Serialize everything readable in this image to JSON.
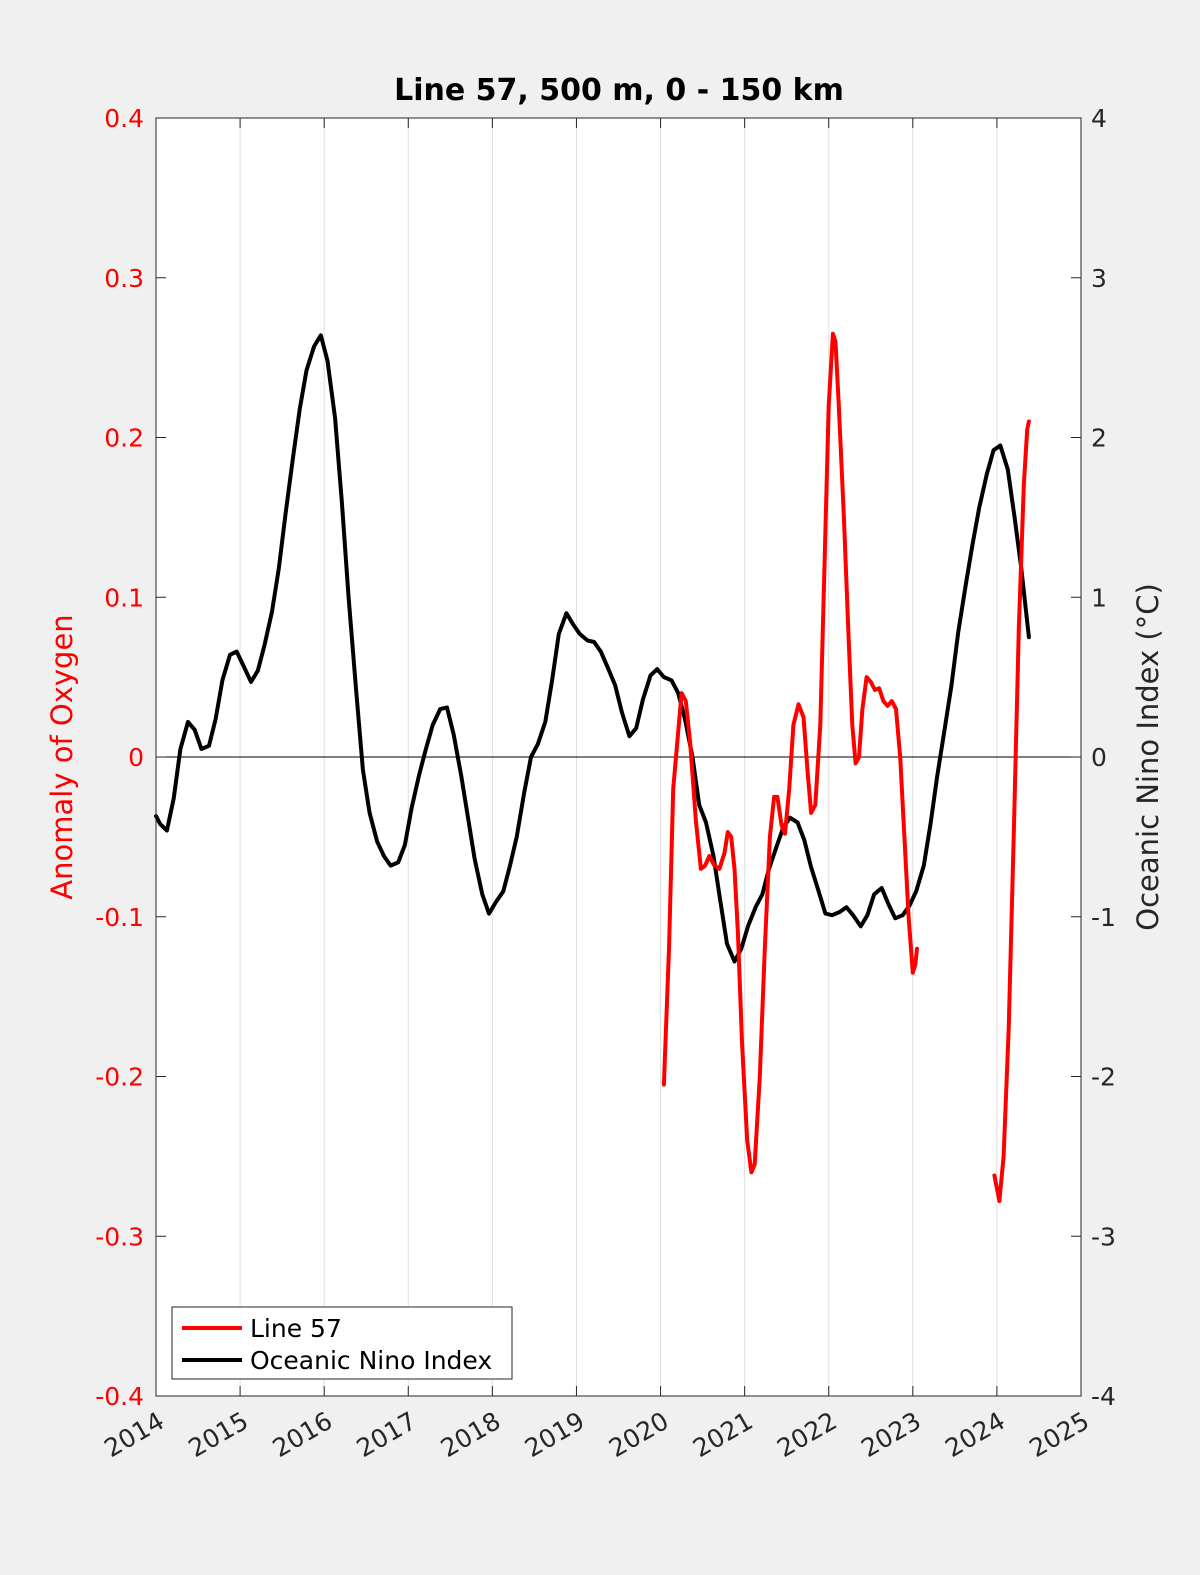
{
  "chart_data": {
    "type": "line",
    "title": "Line 57, 500 m, 0 - 150 km",
    "xlabel": "",
    "ylabel_left": "Anomaly of Oxygen",
    "ylabel_right": "Oceanic Nino Index (°C)",
    "xlim": [
      2014,
      2025
    ],
    "ylim_left": [
      -0.4,
      0.4
    ],
    "ylim_right": [
      -4,
      4
    ],
    "x_ticks": [
      "2014",
      "2015",
      "2016",
      "2017",
      "2018",
      "2019",
      "2020",
      "2021",
      "2022",
      "2023",
      "2024",
      "2025"
    ],
    "y_ticks_left": [
      "0.4",
      "0.3",
      "0.2",
      "0.1",
      "0",
      "-0.1",
      "-0.2",
      "-0.3",
      "-0.4"
    ],
    "y_ticks_right": [
      "4",
      "3",
      "2",
      "1",
      "0",
      "-1",
      "-2",
      "-3",
      "-4"
    ],
    "grid": "vertical",
    "zero_line": true,
    "legend_position": "bottom-left",
    "series": [
      {
        "name": "Line 57",
        "axis": "left",
        "color": "#ff0000",
        "segments": [
          [
            [
              2020.04,
              -0.205
            ],
            [
              2020.1,
              -0.12
            ],
            [
              2020.15,
              -0.02
            ],
            [
              2020.2,
              0.01
            ],
            [
              2020.25,
              0.04
            ],
            [
              2020.3,
              0.035
            ],
            [
              2020.35,
              0.01
            ],
            [
              2020.42,
              -0.04
            ],
            [
              2020.48,
              -0.07
            ],
            [
              2020.53,
              -0.068
            ],
            [
              2020.58,
              -0.062
            ],
            [
              2020.64,
              -0.068
            ],
            [
              2020.7,
              -0.07
            ],
            [
              2020.76,
              -0.06
            ],
            [
              2020.8,
              -0.047
            ],
            [
              2020.84,
              -0.05
            ],
            [
              2020.88,
              -0.07
            ],
            [
              2020.92,
              -0.11
            ],
            [
              2020.97,
              -0.18
            ],
            [
              2021.03,
              -0.24
            ],
            [
              2021.08,
              -0.26
            ],
            [
              2021.12,
              -0.255
            ],
            [
              2021.18,
              -0.2
            ],
            [
              2021.24,
              -0.12
            ],
            [
              2021.3,
              -0.05
            ],
            [
              2021.35,
              -0.025
            ],
            [
              2021.39,
              -0.025
            ],
            [
              2021.44,
              -0.043
            ],
            [
              2021.48,
              -0.048
            ],
            [
              2021.53,
              -0.02
            ],
            [
              2021.58,
              0.02
            ],
            [
              2021.64,
              0.033
            ],
            [
              2021.7,
              0.025
            ],
            [
              2021.75,
              -0.01
            ],
            [
              2021.79,
              -0.035
            ],
            [
              2021.84,
              -0.03
            ],
            [
              2021.9,
              0.02
            ],
            [
              2021.95,
              0.12
            ],
            [
              2022.0,
              0.22
            ],
            [
              2022.05,
              0.265
            ],
            [
              2022.08,
              0.26
            ],
            [
              2022.12,
              0.22
            ],
            [
              2022.18,
              0.15
            ],
            [
              2022.24,
              0.07
            ],
            [
              2022.28,
              0.02
            ],
            [
              2022.32,
              -0.004
            ],
            [
              2022.36,
              0.0
            ],
            [
              2022.4,
              0.03
            ],
            [
              2022.45,
              0.05
            ],
            [
              2022.5,
              0.047
            ],
            [
              2022.55,
              0.042
            ],
            [
              2022.6,
              0.043
            ],
            [
              2022.65,
              0.035
            ],
            [
              2022.7,
              0.032
            ],
            [
              2022.75,
              0.035
            ],
            [
              2022.8,
              0.03
            ],
            [
              2022.85,
              0.0
            ],
            [
              2022.9,
              -0.05
            ],
            [
              2022.95,
              -0.1
            ],
            [
              2023.0,
              -0.135
            ],
            [
              2023.03,
              -0.13
            ],
            [
              2023.05,
              -0.12
            ]
          ],
          [
            [
              2023.97,
              -0.262
            ],
            [
              2024.0,
              -0.27
            ],
            [
              2024.03,
              -0.278
            ],
            [
              2024.08,
              -0.25
            ],
            [
              2024.14,
              -0.17
            ],
            [
              2024.2,
              -0.05
            ],
            [
              2024.26,
              0.08
            ],
            [
              2024.32,
              0.17
            ],
            [
              2024.36,
              0.205
            ],
            [
              2024.38,
              0.21
            ]
          ]
        ]
      },
      {
        "name": "Oceanic Nino Index",
        "axis": "right",
        "color": "#000000",
        "segments": [
          [
            [
              2014.0,
              -0.37
            ],
            [
              2014.05,
              -0.42
            ],
            [
              2014.13,
              -0.46
            ],
            [
              2014.21,
              -0.26
            ],
            [
              2014.29,
              0.05
            ],
            [
              2014.38,
              0.22
            ],
            [
              2014.46,
              0.17
            ],
            [
              2014.54,
              0.05
            ],
            [
              2014.63,
              0.07
            ],
            [
              2014.71,
              0.24
            ],
            [
              2014.79,
              0.48
            ],
            [
              2014.88,
              0.64
            ],
            [
              2014.96,
              0.66
            ],
            [
              2015.04,
              0.57
            ],
            [
              2015.13,
              0.47
            ],
            [
              2015.21,
              0.54
            ],
            [
              2015.29,
              0.7
            ],
            [
              2015.38,
              0.91
            ],
            [
              2015.46,
              1.18
            ],
            [
              2015.54,
              1.52
            ],
            [
              2015.63,
              1.88
            ],
            [
              2015.71,
              2.18
            ],
            [
              2015.79,
              2.42
            ],
            [
              2015.88,
              2.57
            ],
            [
              2015.96,
              2.64
            ],
            [
              2016.04,
              2.48
            ],
            [
              2016.13,
              2.12
            ],
            [
              2016.21,
              1.6
            ],
            [
              2016.29,
              1.0
            ],
            [
              2016.38,
              0.42
            ],
            [
              2016.46,
              -0.08
            ],
            [
              2016.54,
              -0.35
            ],
            [
              2016.63,
              -0.53
            ],
            [
              2016.71,
              -0.62
            ],
            [
              2016.79,
              -0.68
            ],
            [
              2016.88,
              -0.66
            ],
            [
              2016.96,
              -0.55
            ],
            [
              2017.04,
              -0.32
            ],
            [
              2017.13,
              -0.11
            ],
            [
              2017.21,
              0.05
            ],
            [
              2017.29,
              0.2
            ],
            [
              2017.38,
              0.3
            ],
            [
              2017.46,
              0.31
            ],
            [
              2017.54,
              0.14
            ],
            [
              2017.63,
              -0.12
            ],
            [
              2017.71,
              -0.38
            ],
            [
              2017.79,
              -0.64
            ],
            [
              2017.88,
              -0.86
            ],
            [
              2017.96,
              -0.98
            ],
            [
              2018.04,
              -0.91
            ],
            [
              2018.13,
              -0.84
            ],
            [
              2018.21,
              -0.68
            ],
            [
              2018.29,
              -0.5
            ],
            [
              2018.38,
              -0.22
            ],
            [
              2018.46,
              0.0
            ],
            [
              2018.54,
              0.08
            ],
            [
              2018.63,
              0.22
            ],
            [
              2018.71,
              0.48
            ],
            [
              2018.79,
              0.77
            ],
            [
              2018.88,
              0.9
            ],
            [
              2018.96,
              0.83
            ],
            [
              2019.04,
              0.77
            ],
            [
              2019.13,
              0.73
            ],
            [
              2019.21,
              0.72
            ],
            [
              2019.29,
              0.66
            ],
            [
              2019.38,
              0.55
            ],
            [
              2019.46,
              0.45
            ],
            [
              2019.54,
              0.28
            ],
            [
              2019.63,
              0.13
            ],
            [
              2019.71,
              0.18
            ],
            [
              2019.79,
              0.36
            ],
            [
              2019.88,
              0.51
            ],
            [
              2019.96,
              0.55
            ],
            [
              2020.04,
              0.5
            ],
            [
              2020.13,
              0.48
            ],
            [
              2020.21,
              0.4
            ],
            [
              2020.29,
              0.24
            ],
            [
              2020.38,
              0.0
            ],
            [
              2020.46,
              -0.3
            ],
            [
              2020.54,
              -0.41
            ],
            [
              2020.63,
              -0.62
            ],
            [
              2020.71,
              -0.9
            ],
            [
              2020.79,
              -1.17
            ],
            [
              2020.88,
              -1.28
            ],
            [
              2020.96,
              -1.2
            ],
            [
              2021.04,
              -1.06
            ],
            [
              2021.13,
              -0.94
            ],
            [
              2021.21,
              -0.86
            ],
            [
              2021.29,
              -0.7
            ],
            [
              2021.38,
              -0.56
            ],
            [
              2021.46,
              -0.44
            ],
            [
              2021.54,
              -0.38
            ],
            [
              2021.63,
              -0.41
            ],
            [
              2021.71,
              -0.52
            ],
            [
              2021.79,
              -0.69
            ],
            [
              2021.88,
              -0.84
            ],
            [
              2021.96,
              -0.98
            ],
            [
              2022.04,
              -0.99
            ],
            [
              2022.13,
              -0.97
            ],
            [
              2022.21,
              -0.94
            ],
            [
              2022.29,
              -0.99
            ],
            [
              2022.38,
              -1.06
            ],
            [
              2022.46,
              -0.99
            ],
            [
              2022.54,
              -0.86
            ],
            [
              2022.63,
              -0.82
            ],
            [
              2022.71,
              -0.92
            ],
            [
              2022.79,
              -1.01
            ],
            [
              2022.88,
              -0.99
            ],
            [
              2022.96,
              -0.93
            ],
            [
              2023.04,
              -0.84
            ],
            [
              2023.13,
              -0.68
            ],
            [
              2023.21,
              -0.42
            ],
            [
              2023.29,
              -0.12
            ],
            [
              2023.38,
              0.18
            ],
            [
              2023.46,
              0.45
            ],
            [
              2023.54,
              0.78
            ],
            [
              2023.63,
              1.08
            ],
            [
              2023.71,
              1.33
            ],
            [
              2023.79,
              1.56
            ],
            [
              2023.88,
              1.77
            ],
            [
              2023.96,
              1.92
            ],
            [
              2024.04,
              1.95
            ],
            [
              2024.13,
              1.8
            ],
            [
              2024.21,
              1.5
            ],
            [
              2024.29,
              1.18
            ],
            [
              2024.38,
              0.75
            ]
          ]
        ]
      }
    ]
  }
}
